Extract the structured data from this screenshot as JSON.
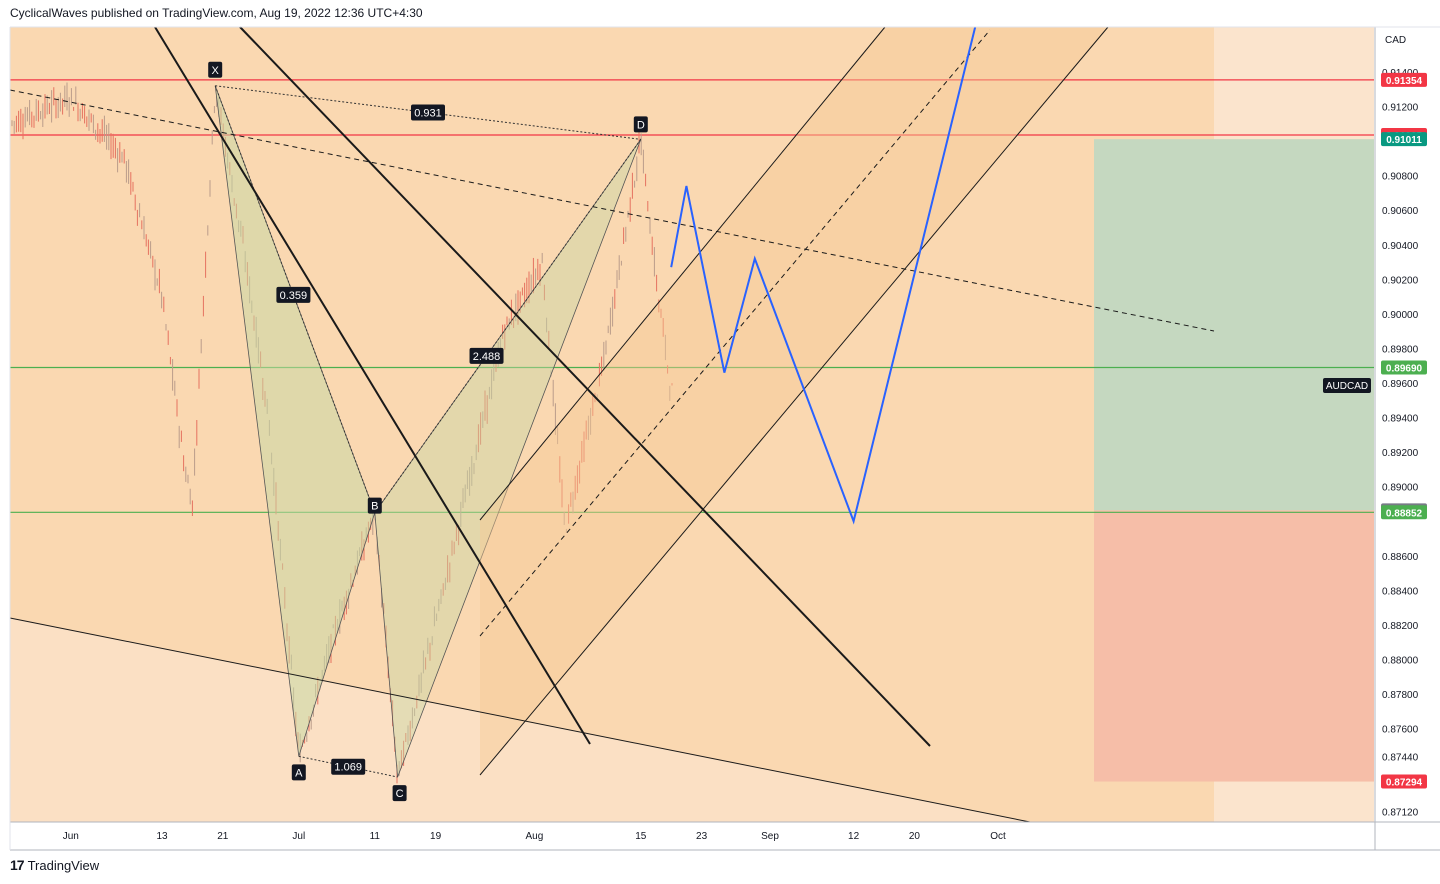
{
  "header": {
    "text": "CyclicalWaves published on TradingView.com, Aug 19, 2022 12:36 UTC+4:30"
  },
  "footer": {
    "logo": "17",
    "brand": "TradingView"
  },
  "chart_data": {
    "type": "candlestick",
    "symbol": "AUDCAD",
    "currency": "CAD",
    "y_axis": {
      "ticks": [
        "0.91400",
        "0.91200",
        "0.90800",
        "0.90600",
        "0.90400",
        "0.90200",
        "0.90000",
        "0.89800",
        "0.89600",
        "0.89400",
        "0.89200",
        "0.89000",
        "0.88600",
        "0.88400",
        "0.88200",
        "0.88000",
        "0.87800",
        "0.87600",
        "0.87440",
        "0.87120"
      ],
      "range": [
        0.8706,
        0.9166
      ]
    },
    "x_axis": {
      "ticks": [
        "Jun",
        "13",
        "21",
        "Jul",
        "11",
        "19",
        "Aug",
        "15",
        "23",
        "Sep",
        "12",
        "20",
        "Oct"
      ]
    },
    "price_labels": [
      {
        "value": "0.91354",
        "color": "#f23645"
      },
      {
        "value": "0.91035",
        "color": "#f23645"
      },
      {
        "value": "0.91011",
        "color": "#089981"
      },
      {
        "value": "0.89690",
        "color": "#4caf50"
      },
      {
        "value": "0.88863",
        "color": "#787b86"
      },
      {
        "value": "0.88852",
        "color": "#4caf50"
      },
      {
        "value": "0.87294",
        "color": "#f23645"
      }
    ],
    "symbol_label": "AUDCAD",
    "horizontal_levels": [
      {
        "price": 0.91354,
        "color": "#f23645"
      },
      {
        "price": 0.91035,
        "color": "#f23645"
      },
      {
        "price": 0.8969,
        "color": "#4caf50"
      },
      {
        "price": 0.88852,
        "color": "#4caf50"
      }
    ],
    "harmonic_pattern": {
      "points": [
        {
          "label": "X",
          "date": "2022-06-20",
          "price": 0.9132
        },
        {
          "label": "A",
          "date": "2022-07-01",
          "price": 0.8744
        },
        {
          "label": "B",
          "date": "2022-07-11",
          "price": 0.8885
        },
        {
          "label": "C",
          "date": "2022-07-14",
          "price": 0.8732
        },
        {
          "label": "D",
          "date": "2022-08-15",
          "price": 0.9101
        }
      ],
      "ratios": [
        "0.359",
        "1.069",
        "2.488",
        "0.931"
      ]
    },
    "projection_path": [
      {
        "date": "2022-08-19",
        "price": 0.9027
      },
      {
        "date": "2022-08-21",
        "price": 0.9074
      },
      {
        "date": "2022-08-26",
        "price": 0.8966
      },
      {
        "date": "2022-08-30",
        "price": 0.9032
      },
      {
        "date": "2022-09-12",
        "price": 0.888
      },
      {
        "date": "2022-09-28",
        "price": 0.9166
      }
    ],
    "long_position": {
      "entry": 0.88863,
      "target": 0.91011,
      "stop": 0.87294
    },
    "colors": {
      "background": "#fad8b1",
      "candle_up": "#ba9c8a",
      "candle_down": "#e57260",
      "projection": "#2962ff",
      "profit_zone": "#c5d8c0",
      "loss_zone": "#f6bea8"
    }
  }
}
